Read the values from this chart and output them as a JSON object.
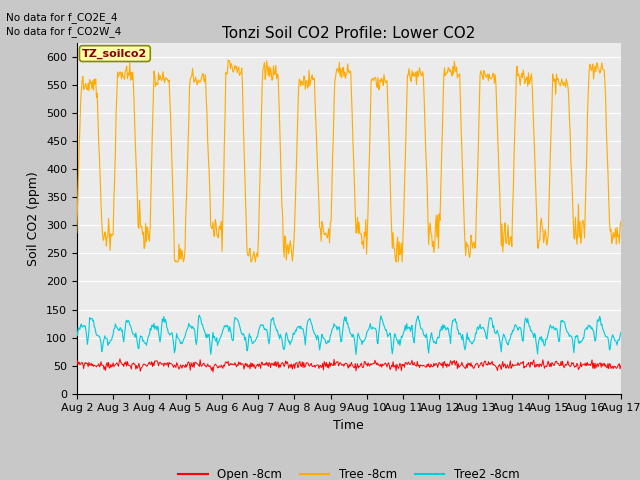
{
  "title": "Tonzi Soil CO2 Profile: Lower CO2",
  "ylabel": "Soil CO2 (ppm)",
  "xlabel": "Time",
  "no_data_text": [
    "No data for f_CO2E_4",
    "No data for f_CO2W_4"
  ],
  "legend_label": "TZ_soilco2",
  "legend_entries": [
    "Open -8cm",
    "Tree -8cm",
    "Tree2 -8cm"
  ],
  "ylim": [
    0,
    625
  ],
  "yticks": [
    0,
    50,
    100,
    150,
    200,
    250,
    300,
    350,
    400,
    450,
    500,
    550,
    600
  ],
  "n_days": 15,
  "background_color": "#c8c8c8",
  "plot_bg": "#ebebeb",
  "tree_color": "#ffaa00",
  "tree2_color": "#00ccdd",
  "open_color": "#ff0000",
  "title_fontsize": 11,
  "axis_fontsize": 9,
  "tick_fontsize": 8
}
